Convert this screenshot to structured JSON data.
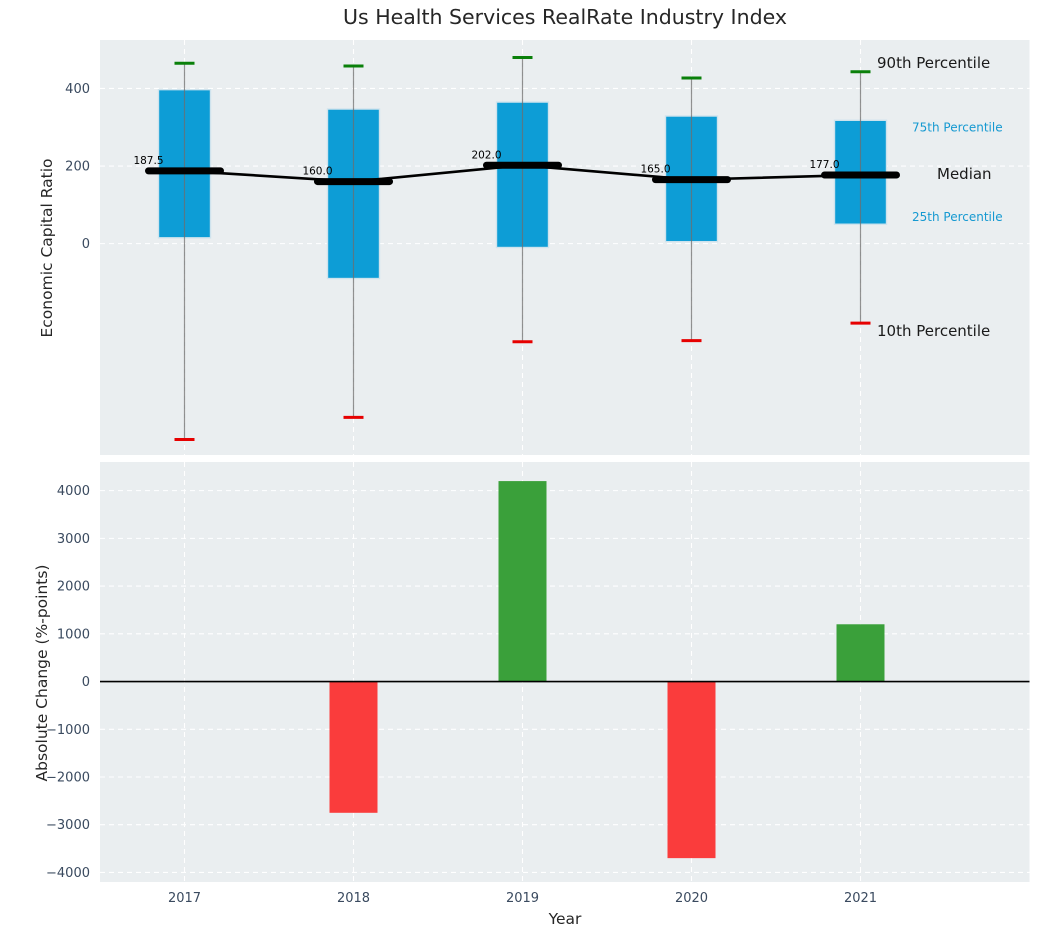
{
  "title": "Us Health Services RealRate Industry Index",
  "colors": {
    "axes_background": "#eaeef0",
    "grid": "#ffffff",
    "tick_label": "#3a4a5f",
    "box_fill": "#0d9dd6",
    "box_edge": "#cfe3ed",
    "median_line": "#000000",
    "whisker": "#6e6e6e",
    "cap_90th": "#0a800a",
    "cap_10th": "#e60000",
    "bar_positive": "#3aa03a",
    "bar_negative": "#fa3c3c",
    "annotation_blue": "#1599d1",
    "annotation_black": "#1a1a1a",
    "zero_line": "#000000"
  },
  "chart_data": [
    {
      "type": "box",
      "title": "Us Health Services RealRate Industry Index",
      "ylabel": "Economic Capital Ratio",
      "categories": [
        "2017",
        "2018",
        "2019",
        "2020",
        "2021"
      ],
      "series": [
        {
          "name": "90th Percentile",
          "values": [
            465,
            458,
            480,
            427,
            443
          ]
        },
        {
          "name": "75th Percentile",
          "values": [
            397,
            347,
            365,
            329,
            318
          ]
        },
        {
          "name": "Median",
          "values": [
            187.5,
            160.0,
            202.0,
            165.0,
            177.0
          ]
        },
        {
          "name": "25th Percentile",
          "values": [
            15,
            -90,
            -10,
            5,
            50
          ]
        },
        {
          "name": "10th Percentile",
          "values": [
            -505,
            -448,
            -253,
            -250,
            -205
          ]
        }
      ],
      "median_labels": [
        "187.5",
        "160.0",
        "202.0",
        "165.0",
        "177.0"
      ],
      "annotations": [
        "90th Percentile",
        "75th Percentile",
        "Median",
        "25th Percentile",
        "10th Percentile"
      ],
      "yticks": [
        "400",
        "200",
        "0"
      ],
      "ytick_values": [
        400,
        200,
        0
      ],
      "ylim": [
        -545,
        525
      ],
      "grid": "dashed-white"
    },
    {
      "type": "bar",
      "ylabel": "Absolute Change (%-points)",
      "xlabel": "Year",
      "categories": [
        "2017",
        "2018",
        "2019",
        "2020",
        "2021"
      ],
      "values": [
        null,
        -2750,
        4200,
        -3700,
        1200
      ],
      "yticks": [
        "4000",
        "3000",
        "2000",
        "1000",
        "0",
        "−1000",
        "−2000",
        "−3000",
        "−4000"
      ],
      "ytick_values": [
        4000,
        3000,
        2000,
        1000,
        0,
        -1000,
        -2000,
        -3000,
        -4000
      ],
      "ylim": [
        -4200,
        4600
      ],
      "grid": "dashed-white"
    }
  ]
}
